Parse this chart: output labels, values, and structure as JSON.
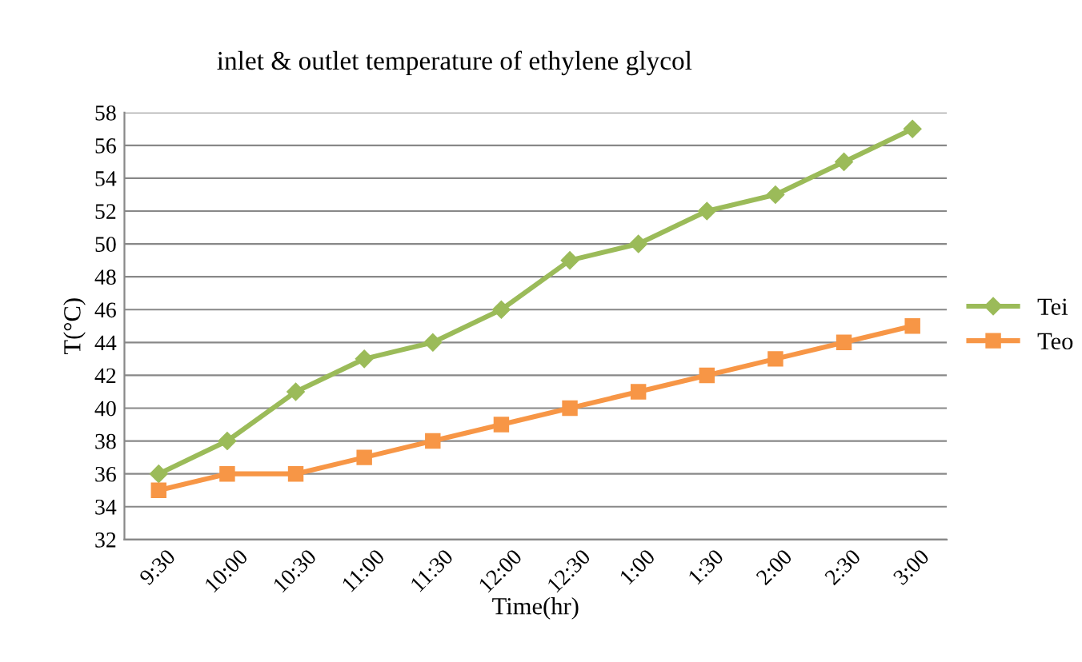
{
  "chart_data": {
    "type": "line",
    "title": "inlet & outlet temperature of ethylene glycol",
    "xlabel": "Time(hr)",
    "ylabel": "T(°C)",
    "categories": [
      "9:30",
      "10:00",
      "10:30",
      "11:00",
      "11:30",
      "12:00",
      "12:30",
      "1:00",
      "1:30",
      "2:00",
      "2:30",
      "3:00"
    ],
    "series": [
      {
        "name": "Tei",
        "color": "#9bbb59",
        "marker": "diamond",
        "values": [
          36,
          38,
          41,
          43,
          44,
          46,
          49,
          50,
          52,
          53,
          55,
          57
        ]
      },
      {
        "name": "Teo",
        "color": "#f79646",
        "marker": "square",
        "values": [
          35,
          36,
          36,
          37,
          38,
          39,
          40,
          41,
          42,
          43,
          44,
          45
        ]
      }
    ],
    "ylim": [
      32,
      58
    ],
    "yticks": [
      32,
      34,
      36,
      38,
      40,
      42,
      44,
      46,
      48,
      50,
      52,
      54,
      56,
      58
    ],
    "grid": "y",
    "legend": "right",
    "line_style": "solid"
  }
}
